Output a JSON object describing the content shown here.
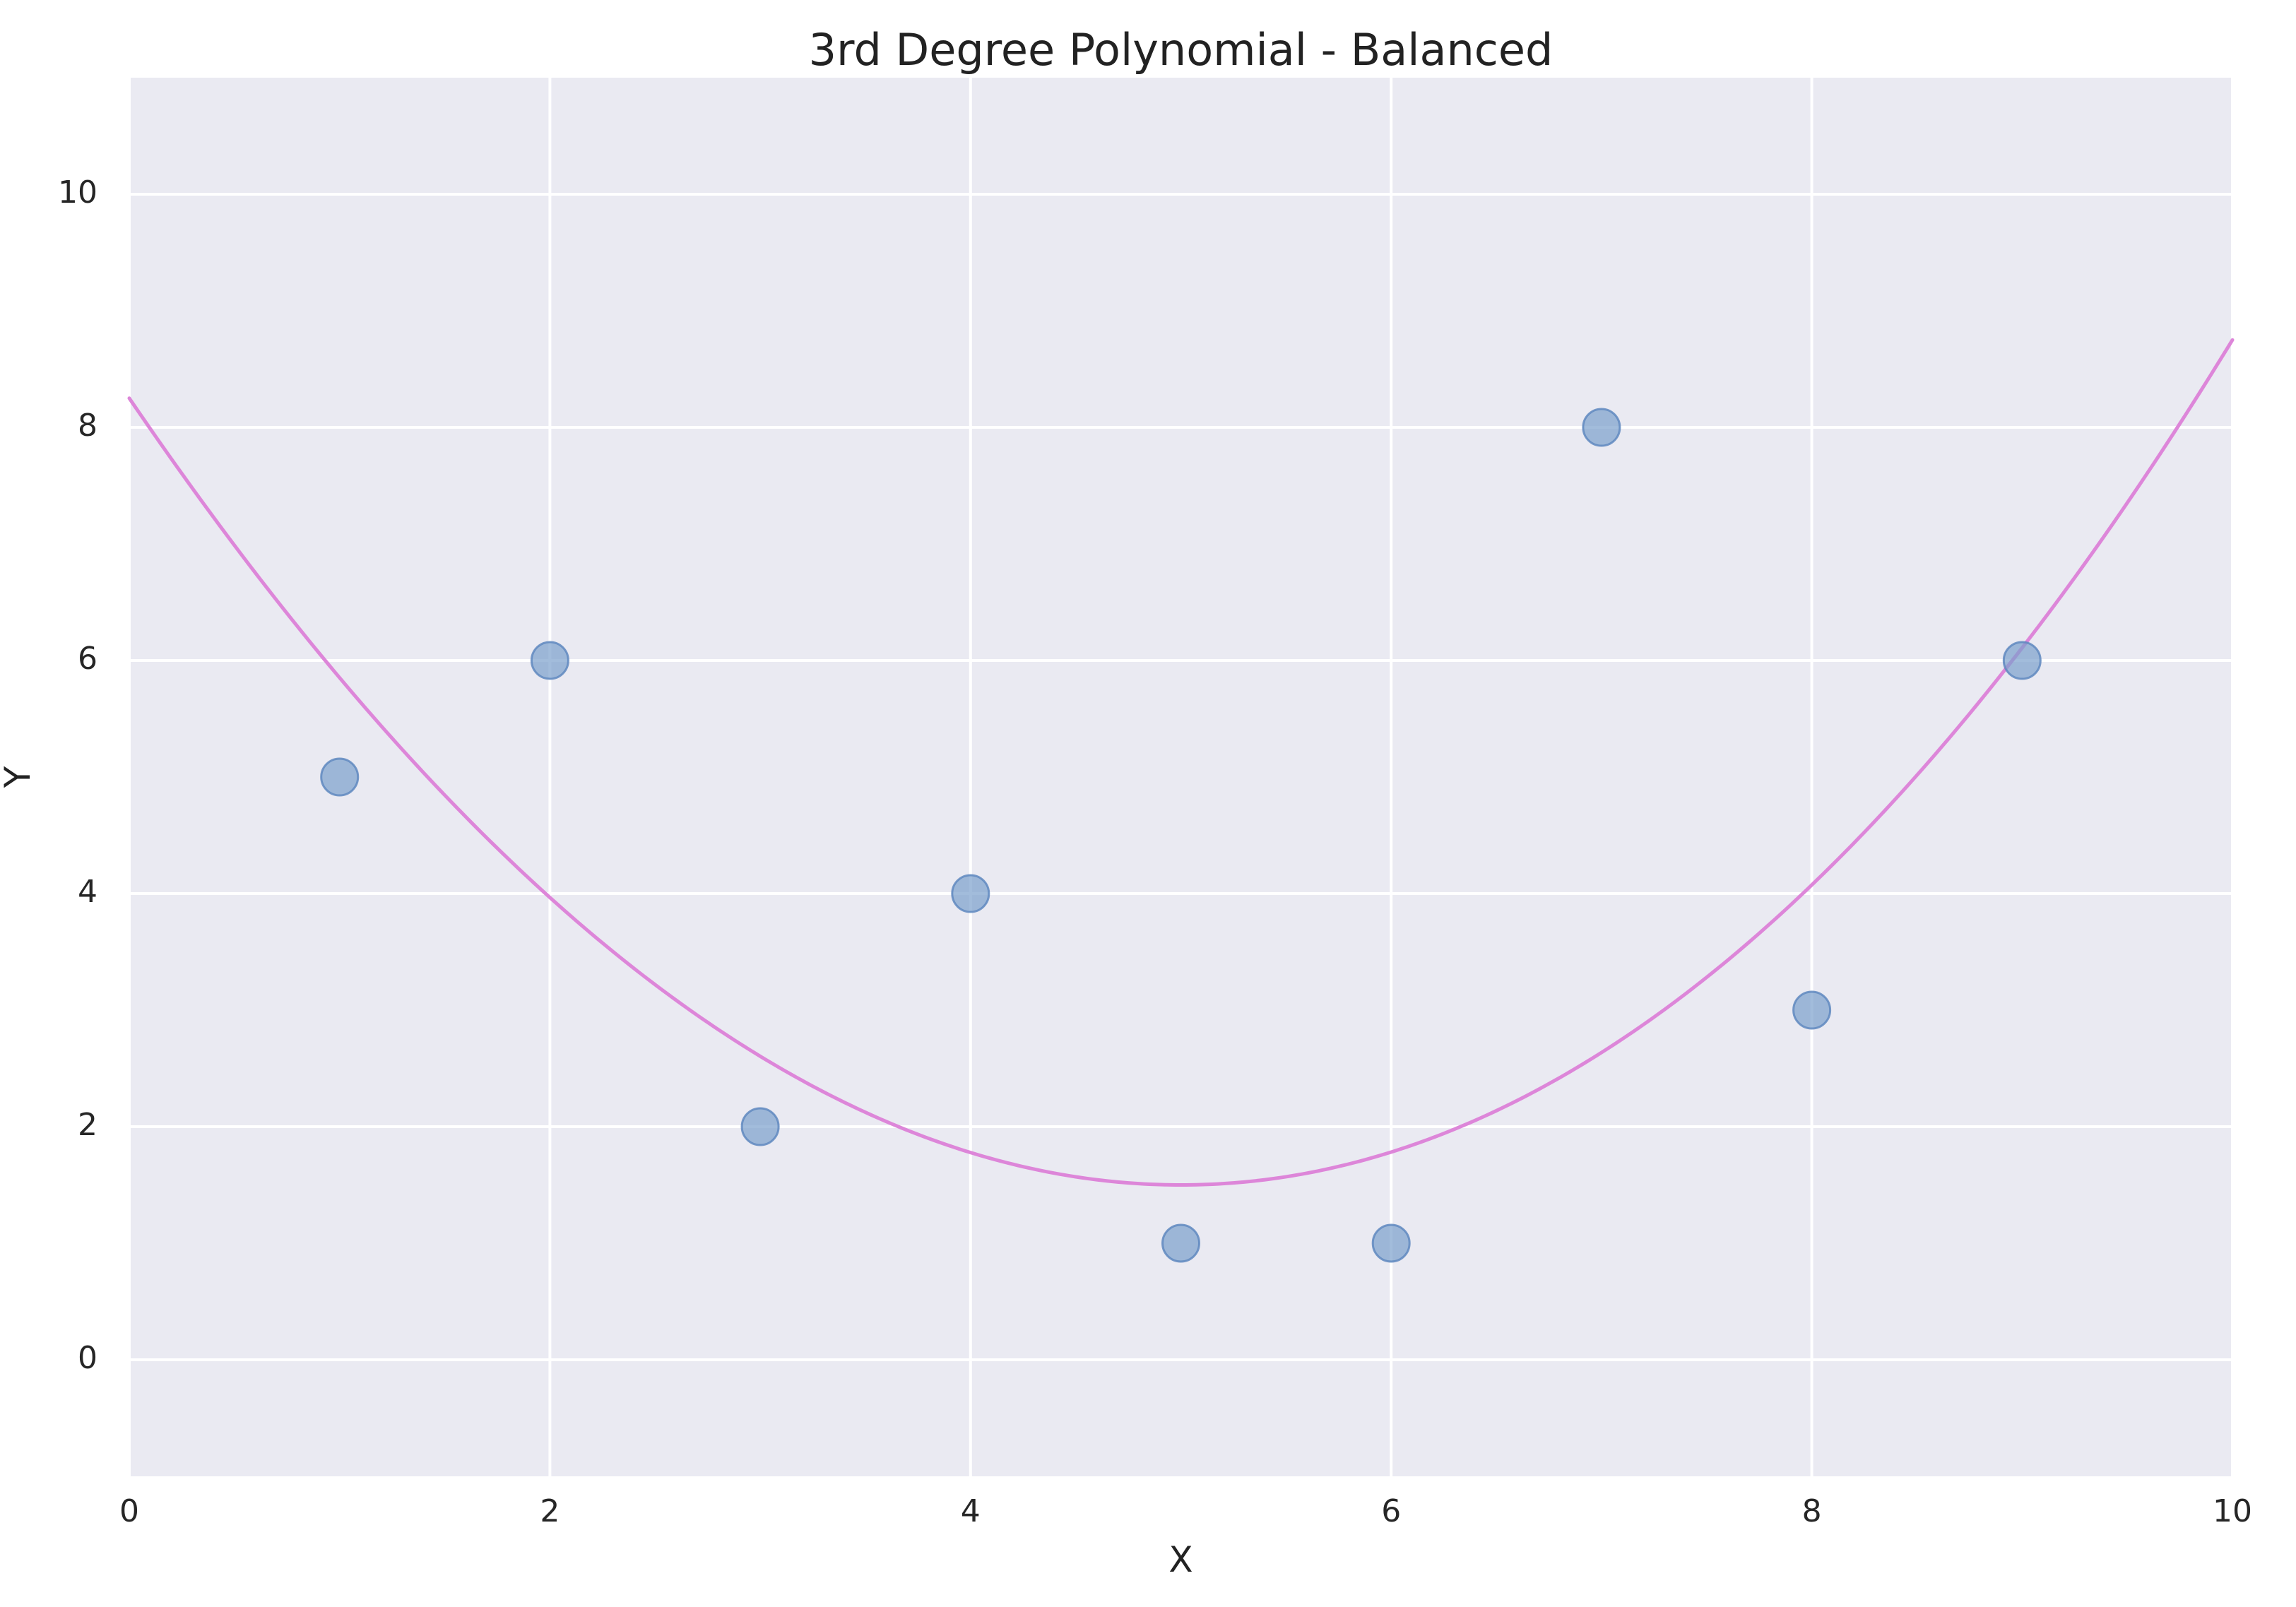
{
  "chart_data": {
    "type": "scatter",
    "title": "3rd Degree Polynomial - Balanced",
    "xlabel": "X",
    "ylabel": "Y",
    "xlim": [
      0,
      10
    ],
    "ylim": [
      -1,
      11
    ],
    "grid": true,
    "xticks": [
      0,
      2,
      4,
      6,
      8,
      10
    ],
    "yticks": [
      0,
      2,
      4,
      6,
      8,
      10
    ],
    "colors": {
      "background": "#eaeaf2",
      "grid": "#ffffff",
      "points": "#7aa0cc",
      "point_edge": "#5f88bf",
      "curve": "#dd86d9"
    },
    "points": [
      {
        "x": 1,
        "y": 5
      },
      {
        "x": 2,
        "y": 6
      },
      {
        "x": 3,
        "y": 2
      },
      {
        "x": 4,
        "y": 4
      },
      {
        "x": 5,
        "y": 1
      },
      {
        "x": 6,
        "y": 1
      },
      {
        "x": 7,
        "y": 8
      },
      {
        "x": 8,
        "y": 3
      },
      {
        "x": 9,
        "y": 6
      }
    ],
    "fit_curve": {
      "type": "line",
      "degree": 3,
      "coefficients": [
        8.25,
        -2.65,
        0.25,
        0.002
      ],
      "x_range": [
        0,
        10
      ]
    }
  }
}
